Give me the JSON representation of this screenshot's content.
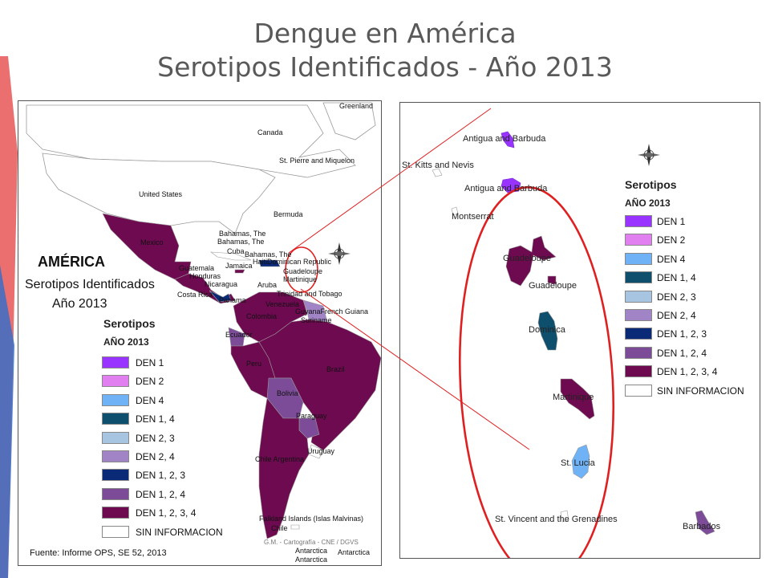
{
  "slide": {
    "title_line1": "Dengue en América",
    "title_line2": "Serotipos Identificados - Año 2013"
  },
  "left_map": {
    "heading": "AMÉRICA",
    "subheading1": "Serotipos Identificados",
    "subheading2": "Año 2013",
    "legend_title1": "Serotipos",
    "legend_title2": "AÑO 2013",
    "source": "Fuente: Informe OPS, SE 52, 2013",
    "credit": "G.M. - Cartografía - CNE / DGVS",
    "labels": {
      "greenland": "Greenland",
      "canada": "Canada",
      "st_pierre": "St. Pierre and Miquelon",
      "united_states": "United States",
      "bermuda": "Bermuda",
      "bahamas1": "Bahamas, The",
      "bahamas2": "Bahamas, The",
      "bahamas3": "Bahamas, The",
      "cuba": "Cuba",
      "jamaica": "Jamaica",
      "haiti": "HaitiDominican Republic",
      "guadeloupe": "Guadeloupe",
      "martinique": "Martinique",
      "mexico": "Mexico",
      "guatemala": "Guatemala",
      "honduras": "Honduras",
      "nicaragua": "Nicaragua",
      "costa_rica": "Costa Rica",
      "panama": "Panama",
      "aruba": "Aruba",
      "trinidad": "Trinidad and Tobago",
      "venezuela": "Venezuela",
      "guyana": "GuyanaFrench Guiana",
      "suriname": "Suriname",
      "colombia": "Colombia",
      "ecuador": "Ecuador",
      "peru": "Peru",
      "brazil": "Brazil",
      "bolivia": "Bolivia",
      "paraguay": "Paraguay",
      "uruguay": "Uruguay",
      "chile_argentina": "Chile Argentina",
      "falkland": "Falkland Islands (Islas Malvinas)",
      "chile": "Chile",
      "antarctica1": "Antarctica",
      "antarctica2": "Antarctica",
      "antarctica3": "Antarctica"
    }
  },
  "right_map": {
    "legend_title1": "Serotipos",
    "legend_title2": "AÑO 2013",
    "islands": {
      "antigua1": "Antigua and Barbuda",
      "st_kitts": "St. Kitts and Nevis",
      "antigua2": "Antigua and Barbuda",
      "montserrat": "Montserrat",
      "guadeloupe1": "Guadeloupe",
      "guadeloupe2": "Guadeloupe",
      "dominica": "Dominica",
      "martinique": "Martinique",
      "st_lucia": "St. Lucia",
      "st_vincent": "St. Vincent and the Grenadines",
      "barbados": "Barbados"
    }
  },
  "legend": [
    {
      "label": "DEN 1",
      "color": "#9933ff"
    },
    {
      "label": "DEN 2",
      "color": "#e27ff0"
    },
    {
      "label": "DEN 4",
      "color": "#6fb2f5"
    },
    {
      "label": "DEN 1, 4",
      "color": "#0f4f6e"
    },
    {
      "label": "DEN 2, 3",
      "color": "#a7c4e0"
    },
    {
      "label": "DEN 2, 4",
      "color": "#a084c6"
    },
    {
      "label": "DEN 1, 2, 3",
      "color": "#0a2a78"
    },
    {
      "label": "DEN 1, 2, 4",
      "color": "#7c4c98"
    },
    {
      "label": "DEN 1, 2, 3, 4",
      "color": "#6e0a50"
    },
    {
      "label": "SIN INFORMACION",
      "color": "#ffffff"
    }
  ],
  "colors": {
    "land_none": "#ffffff",
    "border": "#9a9a9a",
    "highlight_line": "#e02020"
  }
}
